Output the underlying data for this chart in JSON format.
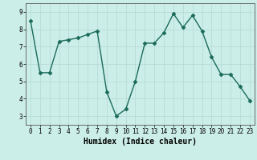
{
  "x": [
    0,
    1,
    2,
    3,
    4,
    5,
    6,
    7,
    8,
    9,
    10,
    11,
    12,
    13,
    14,
    15,
    16,
    17,
    18,
    19,
    20,
    21,
    22,
    23
  ],
  "y": [
    8.5,
    5.5,
    5.5,
    7.3,
    7.4,
    7.5,
    7.7,
    7.9,
    4.4,
    3.0,
    3.4,
    5.0,
    7.2,
    7.2,
    7.8,
    8.9,
    8.1,
    8.8,
    7.9,
    6.4,
    5.4,
    5.4,
    4.7,
    3.9
  ],
  "line_color": "#1a6b5a",
  "marker": "D",
  "markersize": 2.5,
  "linewidth": 1.0,
  "bg_color": "#cceee8",
  "grid_color": "#b8dbd6",
  "xlabel": "Humidex (Indice chaleur)",
  "xlim": [
    -0.5,
    23.5
  ],
  "ylim": [
    2.5,
    9.5
  ],
  "yticks": [
    3,
    4,
    5,
    6,
    7,
    8,
    9
  ],
  "xticks": [
    0,
    1,
    2,
    3,
    4,
    5,
    6,
    7,
    8,
    9,
    10,
    11,
    12,
    13,
    14,
    15,
    16,
    17,
    18,
    19,
    20,
    21,
    22,
    23
  ],
  "tick_fontsize": 5.5,
  "xlabel_fontsize": 7.0,
  "title": ""
}
